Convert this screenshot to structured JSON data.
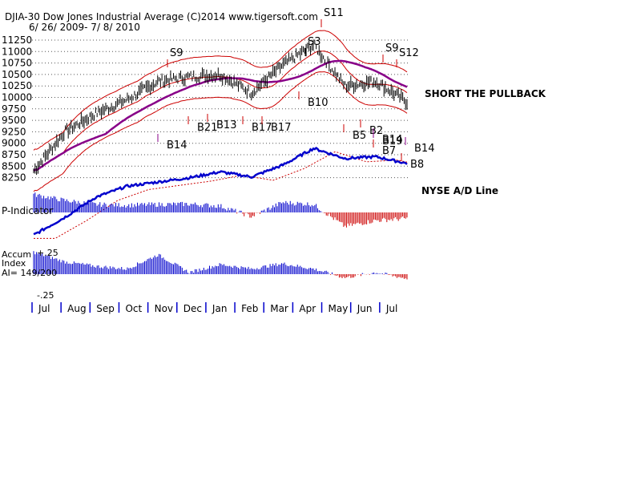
{
  "chart_data": {
    "type": "line",
    "title": "DJIA-30  Dow Jones Industrial Average   (C)2014 www.tigersoft.com",
    "date_range": "6/ 26/ 2009-  7/ 8/ 2010",
    "price_axis": {
      "ticks": [
        "11250",
        "11000",
        "10750",
        "10500",
        "10250",
        "10000",
        "9750",
        "9500",
        "9250",
        "9000",
        "8750",
        "8500",
        "8250"
      ],
      "tick_values": [
        11250,
        11000,
        10750,
        10500,
        10250,
        10000,
        9750,
        9500,
        9250,
        9000,
        8750,
        8500,
        8250
      ],
      "ylim": [
        8250,
        11250
      ]
    },
    "months": [
      "Jul",
      "Aug",
      "Sep",
      "Oct",
      "Nov",
      "Dec",
      "Jan",
      "Feb",
      "Mar",
      "Apr",
      "May",
      "Jun",
      "Jul"
    ],
    "series": [
      {
        "name": "DJIA",
        "color": "#000000",
        "style": "daily bars",
        "x": [
          "2009-07",
          "2009-08",
          "2009-09",
          "2009-10",
          "2009-11",
          "2009-12",
          "2010-01",
          "2010-02",
          "2010-03",
          "2010-04",
          "2010-05",
          "2010-06",
          "2010-07"
        ],
        "values": [
          8400,
          9250,
          9650,
          9950,
          10350,
          10450,
          10500,
          10100,
          10700,
          11150,
          10250,
          10350,
          9900
        ]
      },
      {
        "name": "NYSE A/D Line",
        "color": "#0000cc",
        "style": "line",
        "values": [
          -3,
          18,
          42,
          55,
          60,
          65,
          72,
          66,
          80,
          100,
          88,
          90,
          82
        ]
      },
      {
        "name": "P-Indicator",
        "color": "#0000cc",
        "style": "histogram",
        "values": [
          450,
          300,
          200,
          180,
          200,
          210,
          160,
          -100,
          250,
          200,
          -350,
          -200,
          -150
        ]
      },
      {
        "name": "Accum Index",
        "color": "#0000cc",
        "style": "histogram",
        "values": [
          0.25,
          0.14,
          0.09,
          0.06,
          0.22,
          0.02,
          0.11,
          0.06,
          0.12,
          0.06,
          -0.04,
          0.02,
          -0.05
        ]
      }
    ],
    "accum_axis": {
      "top": "+.25",
      "bottom": "-.25"
    },
    "labels": {
      "p_indicator": "P-Indicator",
      "accum_line1": "Accum",
      "accum_line2": "Index",
      "ai_value": "AI= 149/200",
      "ad_line": "NYSE A/D Line",
      "advice": "SHORT THE PULLBACK"
    },
    "signals": [
      {
        "text": "S9",
        "type": "sell",
        "color": "#cc0000"
      },
      {
        "text": "B14",
        "type": "buy",
        "color": "#880088"
      },
      {
        "text": "B21",
        "type": "buy",
        "color": "#cc0000"
      },
      {
        "text": "B13",
        "type": "buy",
        "color": "#cc0000"
      },
      {
        "text": "B17",
        "type": "buy",
        "color": "#cc0000"
      },
      {
        "text": "B17",
        "type": "buy",
        "color": "#cc0000"
      },
      {
        "text": "B10",
        "type": "buy",
        "color": "#cc0000"
      },
      {
        "text": "S3",
        "type": "sell",
        "color": "#000000"
      },
      {
        "text": "S11",
        "type": "sell",
        "color": "#cc0000"
      },
      {
        "text": "B5",
        "type": "buy",
        "color": "#cc0000"
      },
      {
        "text": "B2",
        "type": "buy",
        "color": "#cc0000"
      },
      {
        "text": "B19",
        "type": "buy",
        "color": "#880088"
      },
      {
        "text": "B14",
        "type": "buy",
        "color": "#880088"
      },
      {
        "text": "B7",
        "type": "buy",
        "color": "#cc0000"
      },
      {
        "text": "S9",
        "type": "sell",
        "color": "#cc0000"
      },
      {
        "text": "S12",
        "type": "sell",
        "color": "#cc0000"
      },
      {
        "text": "B14",
        "type": "buy",
        "color": "#880088"
      },
      {
        "text": "B8",
        "type": "buy",
        "color": "#cc0000"
      }
    ],
    "grid": true,
    "colors": {
      "price": "#000000",
      "bands": "#cc0000",
      "ma": "#880088",
      "ad": "#0000cc",
      "neg": "#cc0000"
    }
  }
}
